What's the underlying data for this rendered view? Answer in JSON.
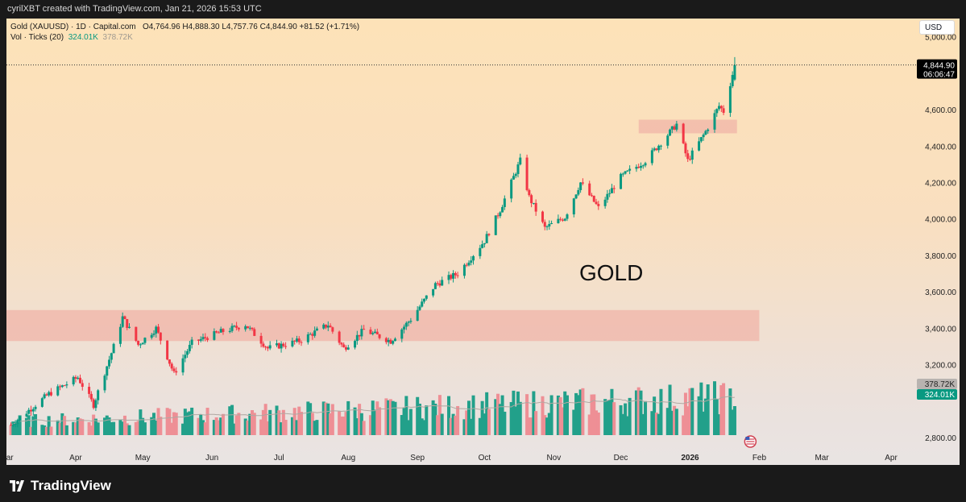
{
  "header": {
    "attribution": "cyrilXBT created with TradingView.com, Jan 21, 2026 15:53 UTC"
  },
  "legend": {
    "symbol": "Gold (XAUUSD) · 1D · Capital.com",
    "ohlc": "O4,764.96  H4,888.30  L4,757.76  C4,844.90  +81.52 (+1.71%)",
    "vol_label": "Vol · Ticks (20)",
    "vol_value": "324.01K",
    "vol_ma": "378.72K"
  },
  "currency": "USD",
  "price_tag": {
    "price": "4,844.90",
    "countdown": "06:06:47"
  },
  "volume_tags": {
    "ma": "378.72K",
    "current": "324.01K"
  },
  "annotation": "GOLD",
  "brand": "TradingView",
  "colors": {
    "up": "#089981",
    "down": "#f23645",
    "volume_up": "#22a08a",
    "volume_down": "#ee8f95",
    "zone_fill": "#f0b4a8"
  },
  "icons": {
    "logo": "tradingview-logo-icon",
    "event": "us-flag-event-icon"
  },
  "chart_data": {
    "type": "candlestick",
    "title": "Gold (XAUUSD) · 1D · Capital.com",
    "x_range": [
      "2025-03-01",
      "2026-04-10"
    ],
    "ylim": [
      2650,
      5100
    ],
    "y_ticks": [
      "5,000.00",
      "4,600.00",
      "4,400.00",
      "4,200.00",
      "4,000.00",
      "3,800.00",
      "3,600.00",
      "3,400.00",
      "3,200.00",
      "2,800.00"
    ],
    "x_ticks": [
      "Mar",
      "Apr",
      "May",
      "Jun",
      "Jul",
      "Aug",
      "Sep",
      "Oct",
      "Nov",
      "Dec",
      "2026",
      "Feb",
      "Mar",
      "Apr"
    ],
    "last": {
      "open": 4764.96,
      "high": 4888.3,
      "low": 4757.76,
      "close": 4844.9,
      "change": 81.52,
      "change_pct": 1.71
    },
    "zones": [
      {
        "price_low": 3330,
        "price_high": 3500,
        "from": "2025-03-01",
        "to": "2026-02-01"
      },
      {
        "price_low": 4470,
        "price_high": 4545,
        "from": "2025-12-09",
        "to": "2026-01-22"
      }
    ],
    "volume": {
      "ma_period": 20,
      "current": 324010,
      "ma_value": 378720
    },
    "series_path": [
      [
        "2025-03-03",
        2870
      ],
      [
        "2025-03-20",
        3040
      ],
      [
        "2025-04-02",
        3130
      ],
      [
        "2025-04-09",
        2980
      ],
      [
        "2025-04-18",
        3300
      ],
      [
        "2025-04-22",
        3460
      ],
      [
        "2025-04-29",
        3310
      ],
      [
        "2025-05-07",
        3400
      ],
      [
        "2025-05-15",
        3150
      ],
      [
        "2025-05-23",
        3320
      ],
      [
        "2025-06-05",
        3380
      ],
      [
        "2025-06-16",
        3420
      ],
      [
        "2025-06-26",
        3290
      ],
      [
        "2025-07-10",
        3330
      ],
      [
        "2025-07-23",
        3420
      ],
      [
        "2025-07-30",
        3290
      ],
      [
        "2025-08-08",
        3390
      ],
      [
        "2025-08-20",
        3330
      ],
      [
        "2025-08-29",
        3450
      ],
      [
        "2025-09-09",
        3640
      ],
      [
        "2025-09-19",
        3700
      ],
      [
        "2025-10-01",
        3880
      ],
      [
        "2025-10-08",
        4050
      ],
      [
        "2025-10-17",
        4320
      ],
      [
        "2025-10-21",
        4120
      ],
      [
        "2025-10-28",
        3950
      ],
      [
        "2025-11-06",
        4010
      ],
      [
        "2025-11-13",
        4200
      ],
      [
        "2025-11-21",
        4060
      ],
      [
        "2025-12-01",
        4230
      ],
      [
        "2025-12-12",
        4320
      ],
      [
        "2025-12-26",
        4520
      ],
      [
        "2025-12-31",
        4320
      ],
      [
        "2026-01-08",
        4480
      ],
      [
        "2026-01-14",
        4620
      ],
      [
        "2026-01-16",
        4590
      ],
      [
        "2026-01-21",
        4845
      ]
    ]
  }
}
